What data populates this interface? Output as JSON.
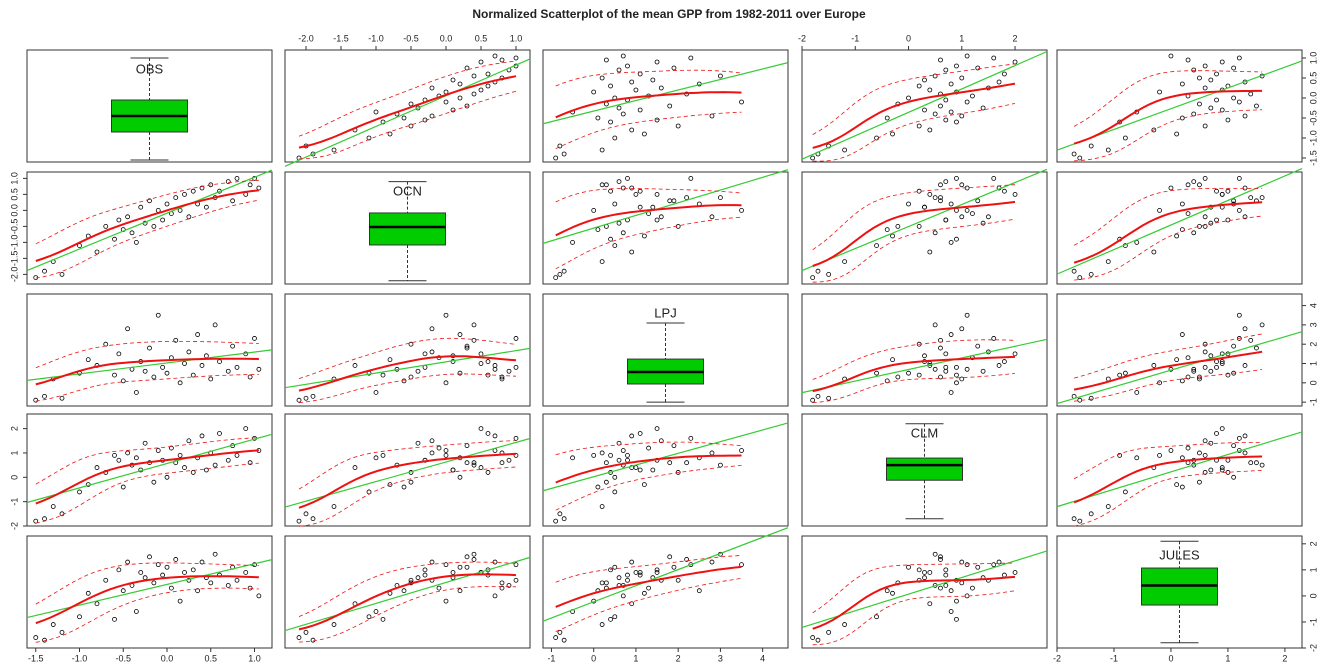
{
  "chart_data": {
    "type": "scatter-matrix",
    "title": "Normalized Scatterplot of the mean GPP from 1982-2011 over Europe",
    "box_color": "#00cc00",
    "point_color": "#000000",
    "fit_color": "#33cc33",
    "smooth_color": "#ee1111",
    "variables": [
      {
        "name": "OBS",
        "lim": [
          -1.6,
          1.2
        ],
        "ticks": [
          -1.5,
          {
            "value": -1,
            "label": "-1.0"
          },
          -0.5,
          {
            "value": 0,
            "label": "0.0"
          },
          0.5,
          {
            "value": 1,
            "label": "1.0"
          }
        ],
        "box": {
          "min": -1.55,
          "q1": -0.85,
          "median": -0.45,
          "q3": -0.05,
          "max": 1.0
        }
      },
      {
        "name": "OCN",
        "lim": [
          -2.3,
          1.2
        ],
        "ticks": [
          {
            "value": -2,
            "label": "-2.0"
          },
          -1.5,
          {
            "value": -1,
            "label": "-1.0"
          },
          -0.5,
          {
            "value": 0,
            "label": "0.0"
          },
          0.5,
          {
            "value": 1,
            "label": "1.0"
          }
        ],
        "box": {
          "min": -2.2,
          "q1": -1.08,
          "median": -0.52,
          "q3": -0.08,
          "max": 0.9
        }
      },
      {
        "name": "LPJ",
        "lim": [
          -1.2,
          4.6
        ],
        "ticks": [
          -1,
          0,
          1,
          2,
          3,
          4
        ],
        "box": {
          "min": -1.0,
          "q1": -0.06,
          "median": 0.56,
          "q3": 1.23,
          "max": 3.1
        }
      },
      {
        "name": "CLM",
        "lim": [
          -2,
          2.6
        ],
        "ticks": [
          -2,
          -1,
          0,
          1,
          2
        ],
        "box": {
          "min": -1.7,
          "q1": -0.12,
          "median": 0.5,
          "q3": 0.79,
          "max": 2.2
        }
      },
      {
        "name": "JULES",
        "lim": [
          -2,
          2.3
        ],
        "ticks": [
          -2,
          -1,
          0,
          1,
          2
        ],
        "box": {
          "min": -1.8,
          "q1": -0.35,
          "median": 0.4,
          "q3": 1.07,
          "max": 2.1
        }
      }
    ],
    "observations": [
      [
        -1.5,
        -2.1,
        -0.9,
        -1.8,
        -1.6
      ],
      [
        -1.4,
        -1.9,
        -0.7,
        -1.7,
        -1.7
      ],
      [
        -1.3,
        -1.6,
        0.2,
        -1.2,
        -1.1
      ],
      [
        -1.2,
        -2.0,
        -0.8,
        -1.5,
        -1.4
      ],
      [
        -1.0,
        -1.1,
        0.5,
        -0.6,
        -0.8
      ],
      [
        -0.9,
        -0.8,
        1.2,
        -0.3,
        0.1
      ],
      [
        -0.8,
        -1.3,
        0.9,
        0.4,
        -0.3
      ],
      [
        -0.7,
        -0.5,
        2.0,
        0.2,
        0.6
      ],
      [
        -0.6,
        -0.9,
        0.4,
        0.9,
        -0.9
      ],
      [
        -0.55,
        -0.3,
        1.5,
        0.7,
        1.0
      ],
      [
        -0.5,
        -0.6,
        0.1,
        -0.4,
        0.2
      ],
      [
        -0.45,
        -0.2,
        2.8,
        1.0,
        1.3
      ],
      [
        -0.4,
        -0.7,
        0.7,
        0.5,
        0.4
      ],
      [
        -0.35,
        -1.0,
        -0.5,
        0.8,
        -0.6
      ],
      [
        -0.3,
        0.1,
        1.1,
        0.3,
        0.9
      ],
      [
        -0.25,
        -0.4,
        0.6,
        1.4,
        0.7
      ],
      [
        -0.2,
        0.3,
        1.8,
        0.6,
        1.5
      ],
      [
        -0.15,
        -0.5,
        0.3,
        -0.2,
        0.5
      ],
      [
        -0.1,
        0.0,
        3.5,
        1.1,
        1.2
      ],
      [
        -0.05,
        -0.3,
        0.8,
        0.7,
        0.8
      ],
      [
        0.0,
        0.2,
        0.5,
        0.0,
        1.1
      ],
      [
        0.05,
        -0.1,
        1.3,
        1.2,
        0.3
      ],
      [
        0.1,
        0.4,
        2.2,
        0.6,
        1.4
      ],
      [
        0.15,
        0.0,
        0.0,
        0.9,
        -0.2
      ],
      [
        0.2,
        0.5,
        1.0,
        0.4,
        0.9
      ],
      [
        0.25,
        -0.2,
        1.6,
        1.5,
        0.6
      ],
      [
        0.3,
        0.6,
        0.4,
        0.2,
        1.0
      ],
      [
        0.35,
        0.2,
        2.5,
        0.8,
        0.2
      ],
      [
        0.4,
        0.7,
        0.9,
        1.7,
        1.3
      ],
      [
        0.45,
        0.1,
        1.4,
        0.3,
        0.7
      ],
      [
        0.5,
        0.8,
        0.2,
        1.0,
        0.5
      ],
      [
        0.55,
        0.4,
        3.0,
        0.5,
        1.6
      ],
      [
        0.6,
        0.6,
        1.1,
        1.8,
        0.8
      ],
      [
        0.7,
        0.9,
        0.6,
        0.7,
        0.4
      ],
      [
        0.75,
        0.3,
        1.9,
        1.3,
        1.1
      ],
      [
        0.8,
        1.0,
        0.8,
        0.9,
        0.6
      ],
      [
        0.9,
        0.5,
        1.5,
        2.0,
        0.9
      ],
      [
        0.95,
        0.8,
        0.3,
        0.6,
        0.3
      ],
      [
        1.0,
        1.0,
        2.3,
        1.6,
        1.2
      ],
      [
        1.05,
        0.7,
        0.7,
        1.1,
        0.0
      ]
    ]
  }
}
